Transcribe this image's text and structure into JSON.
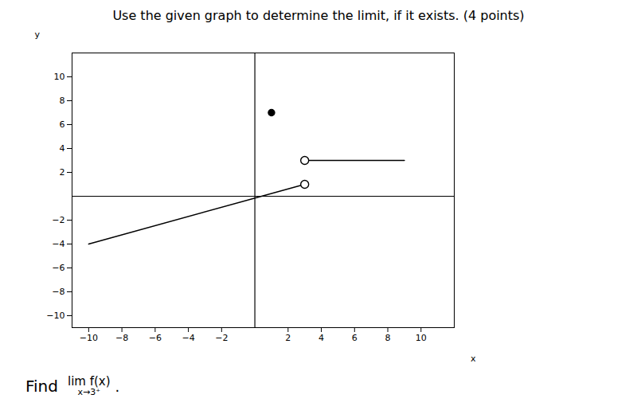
{
  "chart_data": {
    "type": "line",
    "title": "Use the given graph to determine the limit, if it exists. (4 points)",
    "xlabel": "x",
    "ylabel": "y",
    "xlim": [
      -11,
      12
    ],
    "ylim": [
      -11,
      12
    ],
    "xticks": [
      -10,
      -8,
      -6,
      -4,
      -2,
      2,
      4,
      6,
      8,
      10
    ],
    "yticks": [
      -10,
      -8,
      -6,
      -4,
      -2,
      2,
      4,
      6,
      8,
      10
    ],
    "grid": false,
    "series": [
      {
        "type": "line",
        "color": "#000000",
        "line_style": "solid",
        "x": [
          -10,
          3
        ],
        "values": [
          -4,
          1
        ]
      },
      {
        "type": "scatter",
        "color": "#000000",
        "marker": "open_circle",
        "x": [
          3
        ],
        "values": [
          1
        ]
      },
      {
        "type": "line",
        "color": "#000000",
        "line_style": "solid",
        "x": [
          3,
          9
        ],
        "values": [
          3,
          3
        ]
      },
      {
        "type": "scatter",
        "color": "#000000",
        "marker": "open_circle",
        "x": [
          3
        ],
        "values": [
          3
        ]
      },
      {
        "type": "scatter",
        "color": "#000000",
        "marker": "filled_circle",
        "x": [
          1
        ],
        "values": [
          7
        ]
      }
    ],
    "annotations": [
      "Find",
      "lim f(x)",
      "x→3⁺",
      "."
    ]
  }
}
